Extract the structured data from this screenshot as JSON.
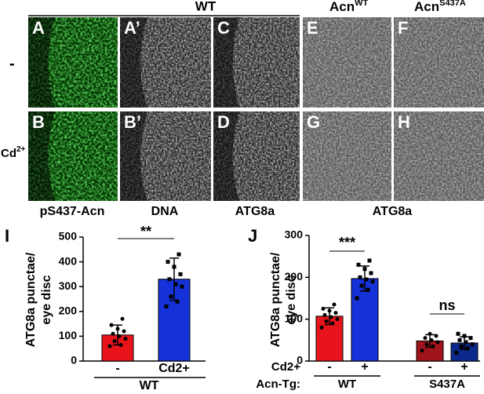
{
  "figure": {
    "header": "WT",
    "columns": [
      {
        "text": "Acn",
        "sup": "WT"
      },
      {
        "text": "Acn",
        "sup": "S437A"
      }
    ],
    "rows": [
      "-",
      {
        "text": "Cd",
        "sup": "2+"
      }
    ],
    "panels": [
      "A",
      "A’",
      "C",
      "E",
      "F",
      "B",
      "B’",
      "D",
      "G",
      "H"
    ],
    "stains": [
      "pS437-Acn",
      "DNA",
      "ATG8a",
      "ATG8a"
    ]
  },
  "chart_data": [
    {
      "type": "bar",
      "panel": "I",
      "ylabel": [
        "ATG8a punctae/",
        "eye disc"
      ],
      "categories": [
        "-",
        "Cd2+"
      ],
      "group": "WT",
      "values": [
        105,
        330
      ],
      "errors": [
        40,
        85
      ],
      "colors": [
        "#e8141b",
        "#1432d8"
      ],
      "points": [
        [
          60,
          65,
          80,
          90,
          100,
          110,
          120,
          130,
          145,
          170
        ],
        [
          220,
          240,
          260,
          300,
          310,
          330,
          350,
          380,
          400,
          430
        ]
      ],
      "ylim": [
        0,
        500
      ],
      "yticks": [
        0,
        100,
        200,
        300,
        400,
        500
      ],
      "annotations": [
        "**"
      ]
    },
    {
      "type": "bar",
      "panel": "J",
      "ylabel": [
        "ATG8a punctae/",
        "eye disc"
      ],
      "categories": [
        "-",
        "+",
        "-",
        "+"
      ],
      "groups": [
        "WT",
        "S437A"
      ],
      "row_labels": [
        "Cd2+",
        "Acn-Tg:"
      ],
      "values": [
        107,
        197,
        48,
        43
      ],
      "errors": [
        20,
        30,
        15,
        15
      ],
      "colors": [
        "#e8141b",
        "#1432d8",
        "#a0141c",
        "#0c2a8c"
      ],
      "points": [
        [
          80,
          90,
          95,
          100,
          105,
          110,
          115,
          120,
          125,
          135
        ],
        [
          150,
          170,
          180,
          190,
          195,
          200,
          210,
          220,
          230,
          240
        ],
        [
          25,
          35,
          40,
          45,
          50,
          55,
          60,
          65
        ],
        [
          20,
          30,
          35,
          40,
          45,
          50,
          55,
          60,
          65
        ]
      ],
      "ylim": [
        0,
        300
      ],
      "yticks": [
        0,
        100,
        200,
        300
      ],
      "annotations": [
        "***",
        "ns"
      ]
    }
  ]
}
